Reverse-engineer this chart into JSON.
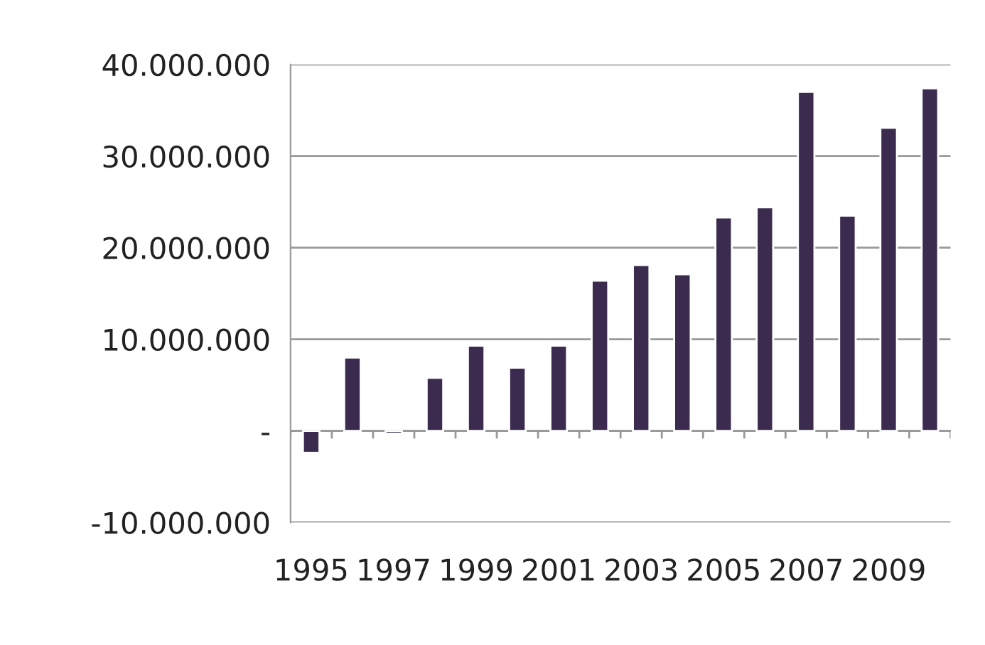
{
  "chart_data": {
    "type": "bar",
    "categories": [
      "1995",
      null,
      "1997",
      null,
      "1999",
      null,
      "2001",
      null,
      "2003",
      null,
      "2005",
      null,
      "2007",
      null,
      "2009",
      null
    ],
    "values": [
      -2400000,
      8000000,
      -300000,
      5800000,
      9300000,
      6900000,
      9300000,
      16400000,
      18100000,
      17100000,
      23300000,
      24400000,
      37000000,
      23500000,
      33100000,
      37400000
    ],
    "color": "#3b2c4f",
    "ylim": [
      -10000000,
      40000000
    ],
    "yticks": [
      {
        "value": -10000000,
        "label": "-10.000.000"
      },
      {
        "value": 0,
        "label": "-"
      },
      {
        "value": 10000000,
        "label": "10.000.000"
      },
      {
        "value": 20000000,
        "label": "20.000.000"
      },
      {
        "value": 30000000,
        "label": "30.000.000"
      },
      {
        "value": 40000000,
        "label": "40.000.000"
      }
    ],
    "grid": "y"
  }
}
